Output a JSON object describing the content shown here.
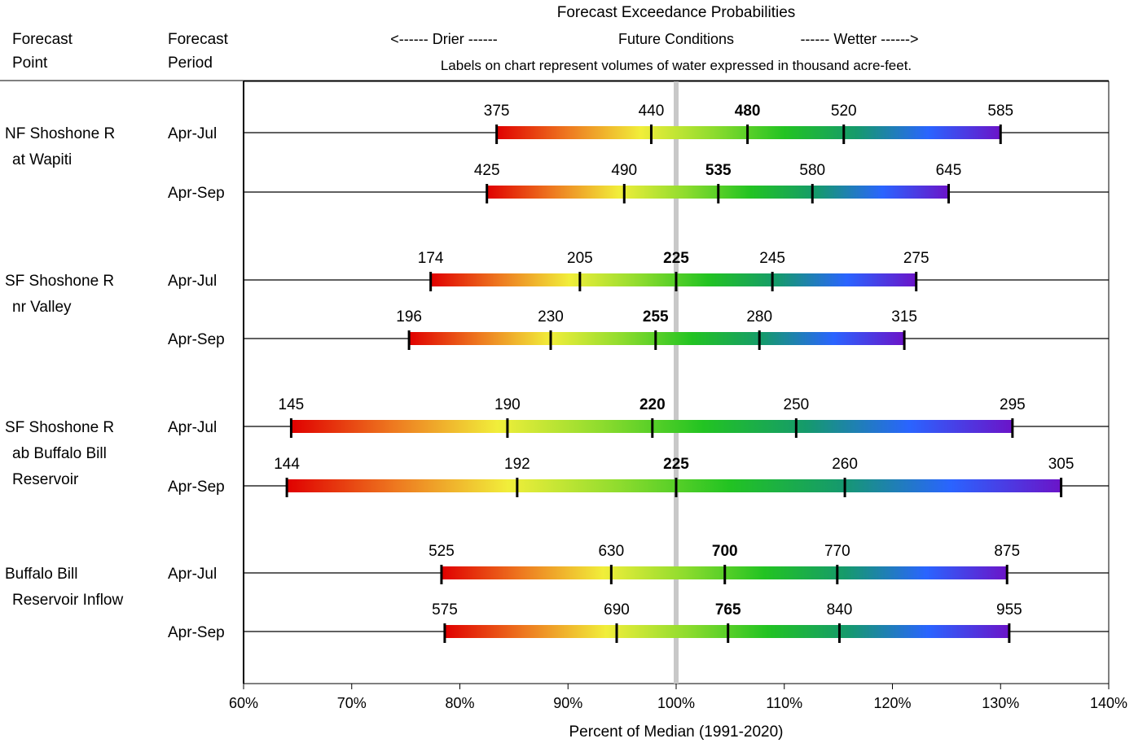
{
  "header": {
    "col_point": [
      "Forecast",
      "Point"
    ],
    "col_period": [
      "Forecast",
      "Period"
    ],
    "title": "Forecast Exceedance Probabilities",
    "direction": {
      "drier": "<------ Drier ------",
      "future": "Future Conditions",
      "wetter": "------ Wetter ------>"
    },
    "note": "Labels on chart represent volumes of water expressed in thousand acre-feet."
  },
  "chart_data": {
    "type": "bar",
    "title": "Forecast Exceedance Probabilities",
    "xlabel": "Percent of Median (1991-2020)",
    "xlim": [
      60,
      140
    ],
    "xticks": [
      "60%",
      "70%",
      "80%",
      "90%",
      "100%",
      "110%",
      "120%",
      "130%",
      "140%"
    ],
    "median_line": 100,
    "gradient_colors": [
      "#e00000",
      "#ee7a20",
      "#f1ee3a",
      "#8fdc2e",
      "#22c322",
      "#159a6c",
      "#2a64ff",
      "#6b14c8"
    ],
    "grid": false,
    "points": [
      {
        "name": [
          "NF Shoshone R",
          "at Wapiti"
        ],
        "periods": [
          {
            "period": "Apr-Jul",
            "pct": [
              83.4,
              97.7,
              106.6,
              115.5,
              130.0
            ],
            "labels": [
              "375",
              "440",
              "480",
              "520",
              "585"
            ],
            "bold_index": 2
          },
          {
            "period": "Apr-Sep",
            "pct": [
              82.5,
              95.2,
              103.9,
              112.6,
              125.2
            ],
            "labels": [
              "425",
              "490",
              "535",
              "580",
              "645"
            ],
            "bold_index": 2
          }
        ]
      },
      {
        "name": [
          "SF Shoshone R",
          "nr Valley"
        ],
        "periods": [
          {
            "period": "Apr-Jul",
            "pct": [
              77.3,
              91.1,
              100.0,
              108.9,
              122.2
            ],
            "labels": [
              "174",
              "205",
              "225",
              "245",
              "275"
            ],
            "bold_index": 2
          },
          {
            "period": "Apr-Sep",
            "pct": [
              75.3,
              88.4,
              98.1,
              107.7,
              121.1
            ],
            "labels": [
              "196",
              "230",
              "255",
              "280",
              "315"
            ],
            "bold_index": 2
          }
        ]
      },
      {
        "name": [
          "SF Shoshone R",
          "ab Buffalo Bill",
          "Reservoir"
        ],
        "periods": [
          {
            "period": "Apr-Jul",
            "pct": [
              64.4,
              84.4,
              97.8,
              111.1,
              131.1
            ],
            "labels": [
              "145",
              "190",
              "220",
              "250",
              "295"
            ],
            "bold_index": 2
          },
          {
            "period": "Apr-Sep",
            "pct": [
              64.0,
              85.3,
              100.0,
              115.6,
              135.6
            ],
            "labels": [
              "144",
              "192",
              "225",
              "260",
              "305"
            ],
            "bold_index": 2
          }
        ]
      },
      {
        "name": [
          "Buffalo Bill",
          "Reservoir Inflow"
        ],
        "periods": [
          {
            "period": "Apr-Jul",
            "pct": [
              78.3,
              94.0,
              104.5,
              114.9,
              130.6
            ],
            "labels": [
              "525",
              "630",
              "700",
              "770",
              "875"
            ],
            "bold_index": 2
          },
          {
            "period": "Apr-Sep",
            "pct": [
              78.6,
              94.5,
              104.8,
              115.1,
              130.8
            ],
            "labels": [
              "575",
              "690",
              "765",
              "840",
              "955"
            ],
            "bold_index": 2
          }
        ]
      }
    ]
  }
}
